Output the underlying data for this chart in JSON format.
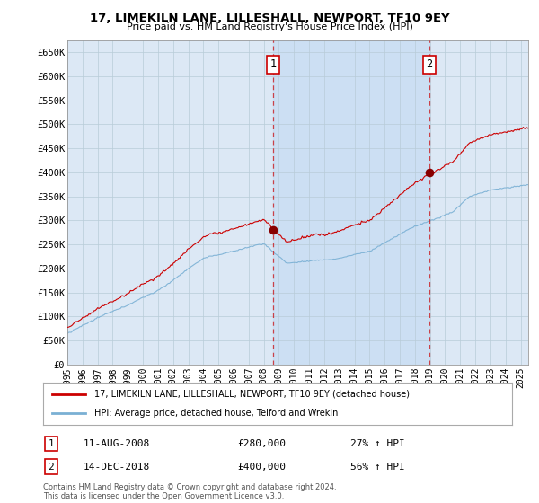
{
  "title": "17, LIMEKILN LANE, LILLESHALL, NEWPORT, TF10 9EY",
  "subtitle": "Price paid vs. HM Land Registry's House Price Index (HPI)",
  "background_color": "#ffffff",
  "plot_bg_color": "#dce8f5",
  "grid_color": "#c8d8e8",
  "shade_color": "#c0d8f0",
  "ylim": [
    0,
    675000
  ],
  "yticks": [
    0,
    50000,
    100000,
    150000,
    200000,
    250000,
    300000,
    350000,
    400000,
    450000,
    500000,
    550000,
    600000,
    650000
  ],
  "ytick_labels": [
    "£0",
    "£50K",
    "£100K",
    "£150K",
    "£200K",
    "£250K",
    "£300K",
    "£350K",
    "£400K",
    "£450K",
    "£500K",
    "£550K",
    "£600K",
    "£650K"
  ],
  "xlim_start": 1995.0,
  "xlim_end": 2025.5,
  "sale1_x": 2008.61,
  "sale1_y": 280000,
  "sale1_label": "1",
  "sale1_date": "11-AUG-2008",
  "sale1_price": "£280,000",
  "sale1_hpi": "27% ↑ HPI",
  "sale2_x": 2018.95,
  "sale2_y": 400000,
  "sale2_label": "2",
  "sale2_date": "14-DEC-2018",
  "sale2_price": "£400,000",
  "sale2_hpi": "56% ↑ HPI",
  "legend_line1": "17, LIMEKILN LANE, LILLESHALL, NEWPORT, TF10 9EY (detached house)",
  "legend_line2": "HPI: Average price, detached house, Telford and Wrekin",
  "line1_color": "#cc0000",
  "line2_color": "#7ab0d4",
  "footer": "Contains HM Land Registry data © Crown copyright and database right 2024.\nThis data is licensed under the Open Government Licence v3.0.",
  "xtick_years": [
    1995,
    1996,
    1997,
    1998,
    1999,
    2000,
    2001,
    2002,
    2003,
    2004,
    2005,
    2006,
    2007,
    2008,
    2009,
    2010,
    2011,
    2012,
    2013,
    2014,
    2015,
    2016,
    2017,
    2018,
    2019,
    2020,
    2021,
    2022,
    2023,
    2024,
    2025
  ]
}
